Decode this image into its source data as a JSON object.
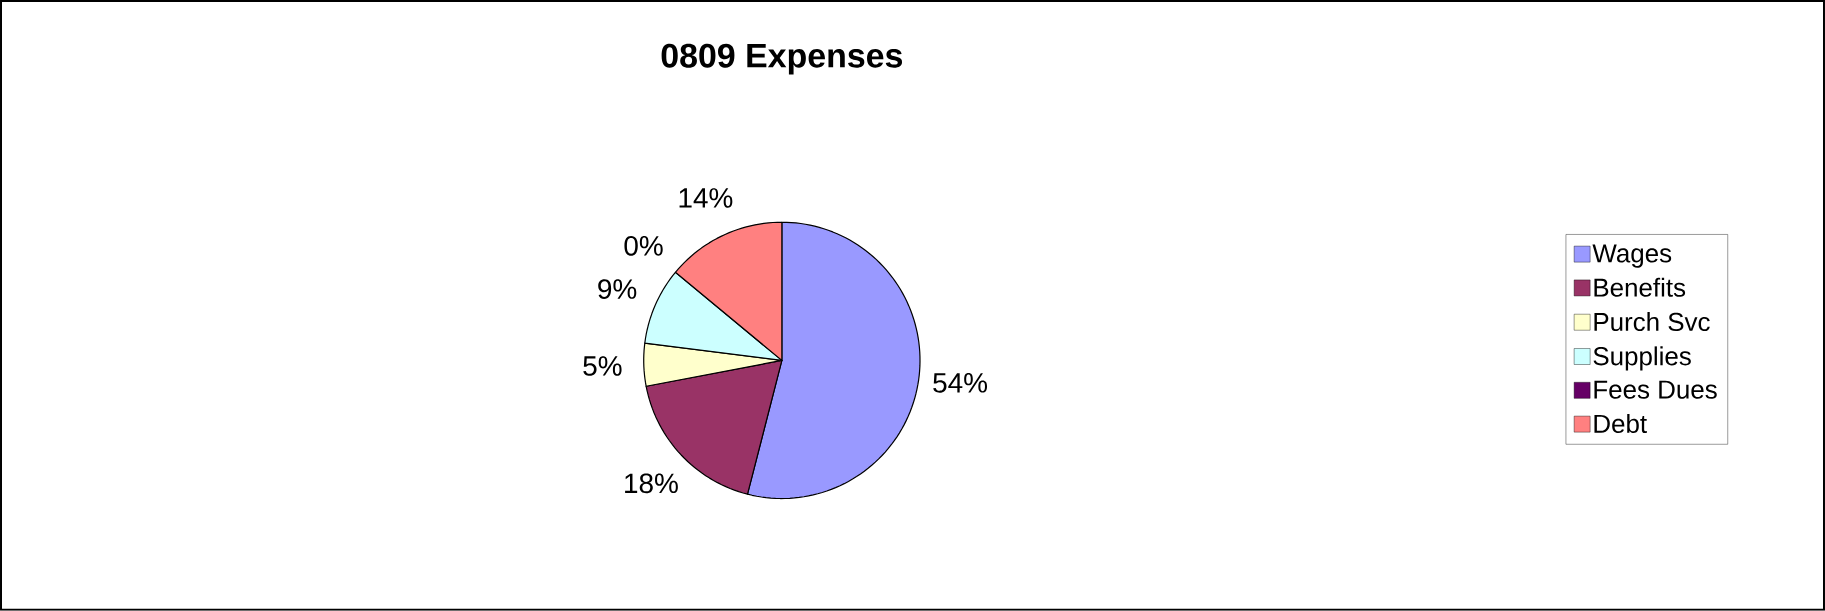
{
  "chart_data": {
    "type": "pie",
    "title": "0809 Expenses",
    "categories": [
      "Wages",
      "Benefits",
      "Purch Svc",
      "Supplies",
      "Fees Dues",
      "Debt"
    ],
    "values": [
      54,
      18,
      5,
      9,
      0,
      14
    ],
    "value_labels": [
      "54%",
      "18%",
      "5%",
      "9%",
      "0%",
      "14%"
    ],
    "colors": [
      "#9999ff",
      "#993366",
      "#ffffcc",
      "#ccffff",
      "#660066",
      "#ff8080"
    ],
    "legend": "right"
  }
}
